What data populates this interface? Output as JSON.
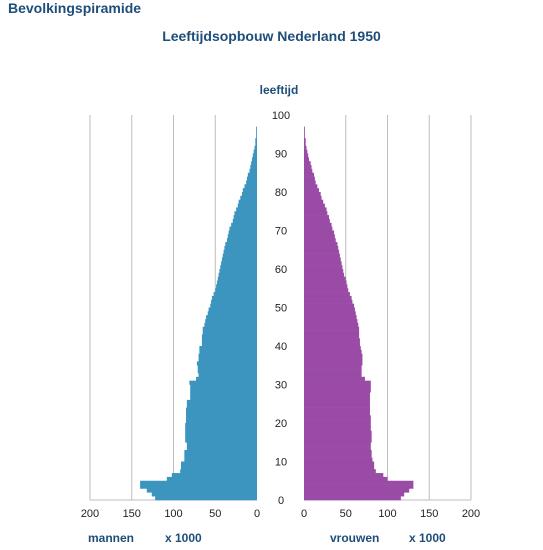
{
  "header": {
    "app_title": "Bevolkingspiramide"
  },
  "chart_data": {
    "type": "bar",
    "orientation": "horizontal",
    "title": "Leeftijdsopbouw Nederland 1950",
    "ylabel": "leeftijd",
    "unit_label": "x 1000",
    "ylim": [
      0,
      100
    ],
    "yticks": [
      0,
      10,
      20,
      30,
      40,
      50,
      60,
      70,
      80,
      90,
      100
    ],
    "xlim": [
      0,
      200
    ],
    "xticks": [
      200,
      150,
      100,
      50,
      0
    ],
    "grid": true,
    "colors": {
      "mannen": "#3b95bf",
      "vrouwen": "#9a4ba6"
    },
    "ages": [
      0,
      1,
      2,
      3,
      4,
      5,
      6,
      7,
      8,
      9,
      10,
      11,
      12,
      13,
      14,
      15,
      16,
      17,
      18,
      19,
      20,
      21,
      22,
      23,
      24,
      25,
      26,
      27,
      28,
      29,
      30,
      31,
      32,
      33,
      34,
      35,
      36,
      37,
      38,
      39,
      40,
      41,
      42,
      43,
      44,
      45,
      46,
      47,
      48,
      49,
      50,
      51,
      52,
      53,
      54,
      55,
      56,
      57,
      58,
      59,
      60,
      61,
      62,
      63,
      64,
      65,
      66,
      67,
      68,
      69,
      70,
      71,
      72,
      73,
      74,
      75,
      76,
      77,
      78,
      79,
      80,
      81,
      82,
      83,
      84,
      85,
      86,
      87,
      88,
      89,
      90,
      91,
      92,
      93,
      94,
      95,
      96,
      97,
      98,
      99
    ],
    "series": [
      {
        "name": "mannen",
        "values": [
          122,
          126,
          132,
          140,
          140,
          108,
          102,
          92,
          91,
          91,
          87,
          87,
          87,
          84,
          84,
          86,
          86,
          86,
          86,
          86,
          85,
          85,
          85,
          85,
          84,
          84,
          80,
          80,
          80,
          80,
          81,
          73,
          70,
          71,
          71,
          72,
          70,
          70,
          69,
          69,
          66,
          66,
          66,
          65,
          65,
          63,
          62,
          61,
          59,
          58,
          56,
          55,
          54,
          52,
          50,
          49,
          48,
          47,
          46,
          45,
          44,
          43,
          42,
          41,
          40,
          39,
          38,
          36,
          35,
          34,
          33,
          31,
          29,
          28,
          27,
          25,
          23,
          22,
          20,
          18,
          17,
          15,
          13,
          12,
          11,
          9,
          8,
          7,
          6,
          5,
          4,
          3,
          2,
          2,
          1,
          1,
          1,
          0,
          0,
          0
        ]
      },
      {
        "name": "vrouwen",
        "values": [
          116,
          120,
          126,
          131,
          131,
          100,
          95,
          86,
          84,
          84,
          82,
          81,
          81,
          80,
          80,
          81,
          81,
          81,
          80,
          80,
          80,
          80,
          79,
          79,
          79,
          79,
          79,
          79,
          80,
          80,
          80,
          73,
          69,
          69,
          69,
          70,
          70,
          70,
          69,
          68,
          67,
          67,
          66,
          66,
          66,
          65,
          64,
          63,
          62,
          61,
          60,
          58,
          57,
          55,
          53,
          52,
          51,
          50,
          48,
          47,
          46,
          45,
          44,
          43,
          42,
          41,
          40,
          38,
          37,
          36,
          34,
          33,
          31,
          30,
          28,
          27,
          25,
          23,
          21,
          20,
          18,
          16,
          14,
          13,
          12,
          10,
          9,
          8,
          6,
          5,
          4,
          3,
          2,
          2,
          1,
          1,
          1,
          0,
          0,
          0
        ]
      }
    ]
  }
}
